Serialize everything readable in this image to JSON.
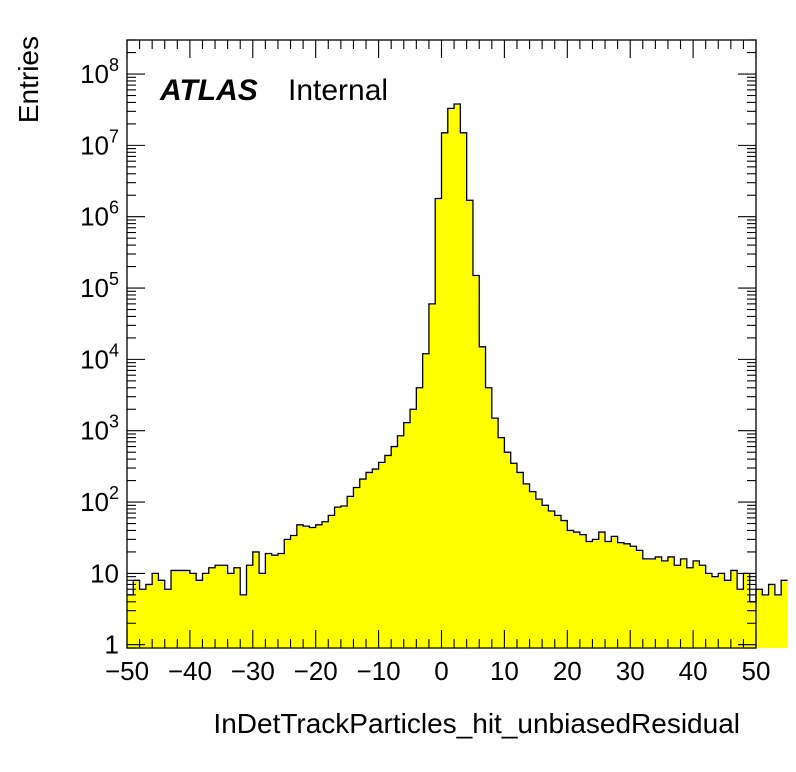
{
  "chart_data": {
    "type": "bar",
    "style": "step-histogram",
    "fill_color": "#ffff00",
    "line_color": "#000000",
    "xlabel": "InDetTrackParticles_hit_unbiasedResidual",
    "ylabel": "Entries",
    "annotation": {
      "bold": "ATLAS",
      "normal": "Internal"
    },
    "xlim": [
      -50,
      50
    ],
    "ylim": [
      0.9,
      300000000.0
    ],
    "yscale": "log",
    "grid": false,
    "legend": "none",
    "xticks": [
      -50,
      -40,
      -30,
      -20,
      -10,
      0,
      10,
      20,
      30,
      40,
      50
    ],
    "xtick_labels": [
      "−50",
      "−40",
      "−30",
      "−20",
      "−10",
      "0",
      "10",
      "20",
      "30",
      "40",
      "50"
    ],
    "ytick_labels": [
      {
        "value": 1,
        "base": "1",
        "exp": ""
      },
      {
        "value": 10,
        "base": "10",
        "exp": ""
      },
      {
        "value": 100,
        "base": "10",
        "exp": "2"
      },
      {
        "value": 1000,
        "base": "10",
        "exp": "3"
      },
      {
        "value": 10000,
        "base": "10",
        "exp": "4"
      },
      {
        "value": 100000,
        "base": "10",
        "exp": "5"
      },
      {
        "value": 1000000,
        "base": "10",
        "exp": "6"
      },
      {
        "value": 10000000,
        "base": "10",
        "exp": "7"
      },
      {
        "value": 100000000,
        "base": "10",
        "exp": "8"
      }
    ],
    "bin_start": -50,
    "bin_width": 1,
    "values": [
      5,
      8,
      6,
      7,
      10,
      8,
      6,
      11,
      11,
      11,
      10,
      8,
      10,
      12,
      13,
      13,
      10,
      12,
      5,
      13,
      20,
      10,
      19,
      18,
      19,
      30,
      34,
      48,
      46,
      44,
      48,
      53,
      65,
      85,
      88,
      120,
      160,
      210,
      260,
      290,
      360,
      450,
      600,
      850,
      1300,
      2000,
      4000,
      12000,
      60000,
      1800000,
      15000000,
      33000000,
      38000000,
      15000000,
      1700000,
      150000,
      15000,
      4000,
      1500,
      800,
      500,
      350,
      260,
      180,
      140,
      110,
      90,
      75,
      65,
      55,
      40,
      38,
      35,
      28,
      30,
      38,
      28,
      33,
      27,
      26,
      24,
      21,
      16,
      16,
      17,
      15,
      17,
      13,
      16,
      12,
      15,
      13,
      10,
      9,
      10,
      8,
      11,
      6,
      10,
      4,
      6,
      5,
      7,
      5,
      8
    ]
  }
}
